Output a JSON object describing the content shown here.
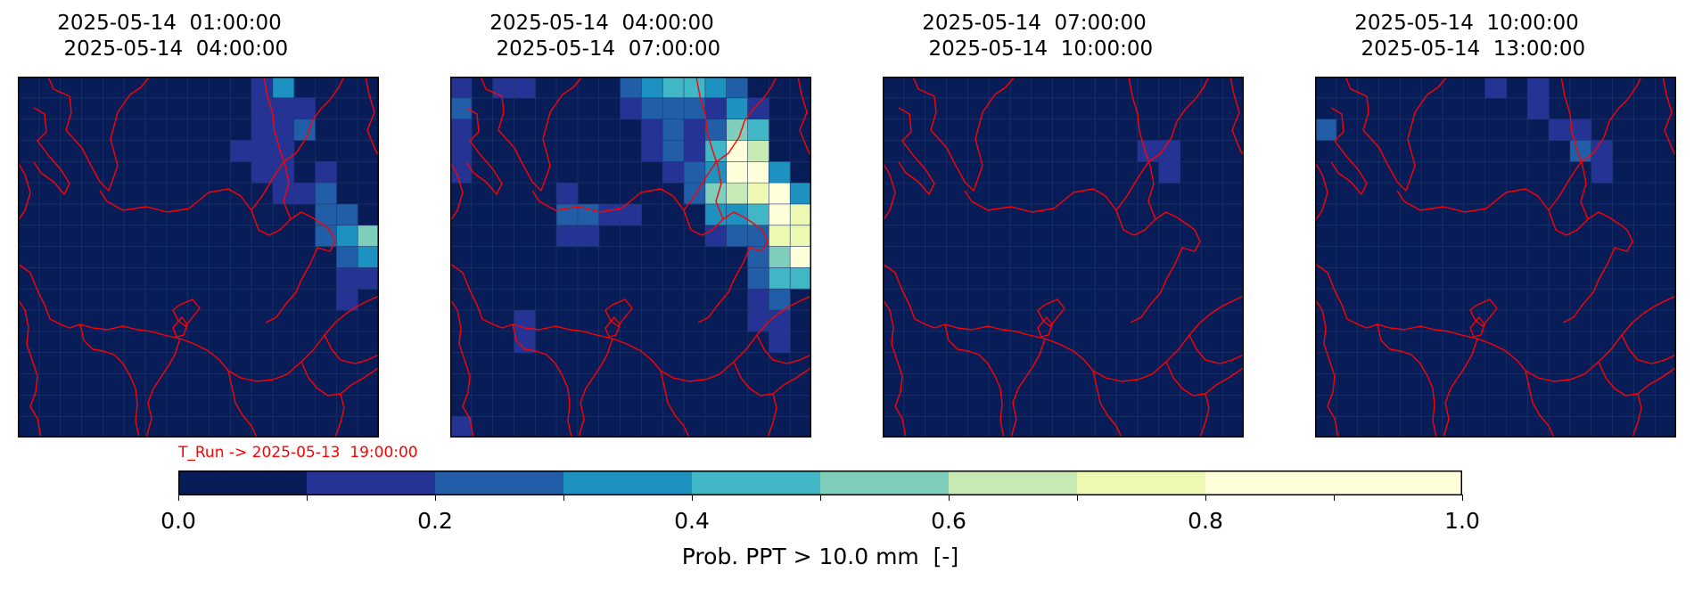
{
  "panels": [
    {
      "title_line1": "2025-05-14  01:00:00",
      "title_line2": "2025-05-14  04:00:00",
      "cells": [
        [
          11,
          0,
          0.1
        ],
        [
          12,
          0,
          0.3
        ],
        [
          11,
          1,
          0.1
        ],
        [
          12,
          1,
          0.1
        ],
        [
          13,
          1,
          0.1
        ],
        [
          11,
          2,
          0.1
        ],
        [
          12,
          2,
          0.1
        ],
        [
          13,
          2,
          0.2
        ],
        [
          10,
          3,
          0.1
        ],
        [
          11,
          3,
          0.1
        ],
        [
          12,
          3,
          0.1
        ],
        [
          11,
          4,
          0.1
        ],
        [
          12,
          4,
          0.1
        ],
        [
          14,
          4,
          0.1
        ],
        [
          12,
          5,
          0.1
        ],
        [
          13,
          5,
          0.1
        ],
        [
          14,
          5,
          0.2
        ],
        [
          14,
          6,
          0.2
        ],
        [
          15,
          6,
          0.2
        ],
        [
          14,
          7,
          0.2
        ],
        [
          15,
          7,
          0.3
        ],
        [
          16,
          7,
          0.5
        ],
        [
          15,
          8,
          0.2
        ],
        [
          16,
          8,
          0.3
        ],
        [
          15,
          9,
          0.1
        ],
        [
          16,
          9,
          0.1
        ],
        [
          15,
          10,
          0.1
        ]
      ]
    },
    {
      "title_line1": "2025-05-14  04:00:00",
      "title_line2": "2025-05-14  07:00:00",
      "cells": [
        [
          0,
          0,
          0.1
        ],
        [
          2,
          0,
          0.1
        ],
        [
          3,
          0,
          0.1
        ],
        [
          8,
          0,
          0.2
        ],
        [
          9,
          0,
          0.3
        ],
        [
          10,
          0,
          0.4
        ],
        [
          11,
          0,
          0.4
        ],
        [
          12,
          0,
          0.3
        ],
        [
          13,
          0,
          0.2
        ],
        [
          0,
          1,
          0.2
        ],
        [
          8,
          1,
          0.1
        ],
        [
          9,
          1,
          0.2
        ],
        [
          10,
          1,
          0.2
        ],
        [
          11,
          1,
          0.2
        ],
        [
          12,
          1,
          0.1
        ],
        [
          13,
          1,
          0.3
        ],
        [
          14,
          1,
          0.1
        ],
        [
          0,
          2,
          0.1
        ],
        [
          9,
          2,
          0.1
        ],
        [
          10,
          2,
          0.2
        ],
        [
          11,
          2,
          0.1
        ],
        [
          12,
          2,
          0.2
        ],
        [
          13,
          2,
          0.5
        ],
        [
          14,
          2,
          0.4
        ],
        [
          0,
          3,
          0.1
        ],
        [
          9,
          3,
          0.1
        ],
        [
          10,
          3,
          0.2
        ],
        [
          11,
          3,
          0.1
        ],
        [
          12,
          3,
          0.4
        ],
        [
          13,
          3,
          0.8
        ],
        [
          14,
          3,
          0.6
        ],
        [
          0,
          4,
          0.1
        ],
        [
          10,
          4,
          0.1
        ],
        [
          11,
          4,
          0.2
        ],
        [
          12,
          4,
          0.3
        ],
        [
          13,
          4,
          0.8
        ],
        [
          14,
          4,
          0.9
        ],
        [
          15,
          4,
          0.3
        ],
        [
          5,
          5,
          0.1
        ],
        [
          11,
          5,
          0.2
        ],
        [
          12,
          5,
          0.5
        ],
        [
          13,
          5,
          0.6
        ],
        [
          14,
          5,
          0.7
        ],
        [
          15,
          5,
          0.8
        ],
        [
          16,
          5,
          0.3
        ],
        [
          5,
          6,
          0.2
        ],
        [
          6,
          6,
          0.2
        ],
        [
          7,
          6,
          0.1
        ],
        [
          8,
          6,
          0.1
        ],
        [
          12,
          6,
          0.3
        ],
        [
          13,
          6,
          0.3
        ],
        [
          14,
          6,
          0.4
        ],
        [
          15,
          6,
          0.8
        ],
        [
          16,
          6,
          0.7
        ],
        [
          5,
          7,
          0.1
        ],
        [
          6,
          7,
          0.1
        ],
        [
          12,
          7,
          0.1
        ],
        [
          13,
          7,
          0.2
        ],
        [
          14,
          7,
          0.2
        ],
        [
          15,
          7,
          0.7
        ],
        [
          16,
          7,
          0.7
        ],
        [
          14,
          8,
          0.2
        ],
        [
          15,
          8,
          0.5
        ],
        [
          16,
          8,
          0.8
        ],
        [
          14,
          9,
          0.2
        ],
        [
          15,
          9,
          0.4
        ],
        [
          16,
          9,
          0.4
        ],
        [
          14,
          10,
          0.1
        ],
        [
          15,
          10,
          0.2
        ],
        [
          14,
          11,
          0.1
        ],
        [
          15,
          11,
          0.1
        ],
        [
          3,
          11,
          0.1
        ],
        [
          3,
          12,
          0.1
        ],
        [
          15,
          12,
          0.1
        ],
        [
          0,
          16,
          0.1
        ]
      ]
    },
    {
      "title_line1": "2025-05-14  07:00:00",
      "title_line2": "2025-05-14  10:00:00",
      "cells": [
        [
          12,
          3,
          0.1
        ],
        [
          13,
          3,
          0.1
        ],
        [
          13,
          4,
          0.1
        ]
      ]
    },
    {
      "title_line1": "2025-05-14  10:00:00",
      "title_line2": "2025-05-14  13:00:00",
      "cells": [
        [
          8,
          0,
          0.1
        ],
        [
          10,
          0,
          0.1
        ],
        [
          10,
          1,
          0.1
        ],
        [
          0,
          2,
          0.2
        ],
        [
          11,
          2,
          0.1
        ],
        [
          12,
          2,
          0.1
        ],
        [
          12,
          3,
          0.2
        ],
        [
          13,
          3,
          0.1
        ],
        [
          13,
          4,
          0.1
        ]
      ]
    }
  ],
  "run_label": "T_Run -> 2025-05-13  19:00:00",
  "colorbar": {
    "label": "Prob. PPT > 10.0 mm  [-]",
    "bounds": [
      0,
      1
    ],
    "step": 0.1,
    "colors": [
      "#081d58",
      "#253494",
      "#225ea8",
      "#1d91c0",
      "#41b6c4",
      "#7fcdbb",
      "#c7e9b4",
      "#edf8b1",
      "#ffffd9"
    ],
    "tick_labels": [
      "0.0",
      "0.2",
      "0.4",
      "0.6",
      "0.8",
      "1.0"
    ],
    "background_color": "#081d58"
  },
  "colors": {
    "border_lines": "#ff0000",
    "grid": "#1e3a6e"
  }
}
